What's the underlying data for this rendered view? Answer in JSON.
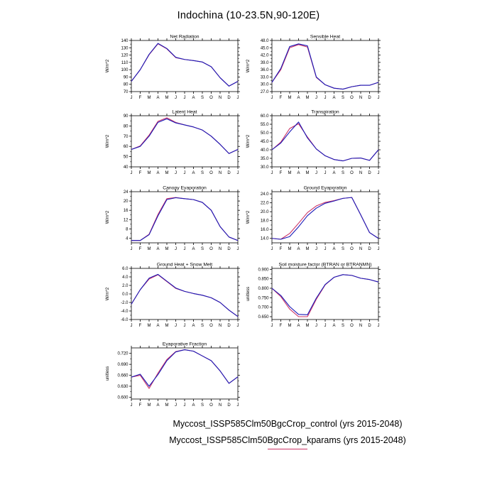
{
  "page": {
    "title": "Indochina (10-23.5N,90-120E)"
  },
  "legend": {
    "entries": [
      {
        "label": "Myccost_ISSP585Clm50BgcCrop_control (yrs 2015-2048)",
        "color": "#1a1ab8"
      },
      {
        "label": "Myccost_ISSP585Clm50BgcCrop_kparams (yrs 2015-2048)",
        "color": "#cc3366"
      }
    ]
  },
  "chart_data": [
    {
      "type": "line",
      "title": "Net Radiation",
      "ylabel": "W/m^2",
      "x": [
        "J",
        "F",
        "M",
        "A",
        "M",
        "J",
        "J",
        "A",
        "S",
        "O",
        "N",
        "D",
        "J"
      ],
      "ymin": 70,
      "ymax": 140,
      "yticks": [
        "140",
        "130",
        "120",
        "110",
        "100",
        "90",
        "80",
        "70"
      ],
      "series": [
        {
          "name": "control",
          "color": "#1a1ab8",
          "values": [
            84,
            100,
            121,
            136,
            129,
            117,
            114,
            112.5,
            110.5,
            104,
            89,
            77.5,
            84
          ]
        },
        {
          "name": "kparams",
          "color": "#cc3366",
          "values": [
            84,
            100,
            120.5,
            135.5,
            128.5,
            116.5,
            114,
            112.5,
            110.5,
            104,
            89,
            77.5,
            84
          ]
        }
      ]
    },
    {
      "type": "line",
      "title": "Sensible Heat",
      "ylabel": "W/m^2",
      "x": [
        "J",
        "F",
        "M",
        "A",
        "M",
        "J",
        "J",
        "A",
        "S",
        "O",
        "N",
        "D",
        "J"
      ],
      "ymin": 27,
      "ymax": 48,
      "yticks": [
        "48.0",
        "45.0",
        "42.0",
        "39.0",
        "36.0",
        "33.0",
        "30.0",
        "27.0"
      ],
      "series": [
        {
          "name": "control",
          "color": "#1a1ab8",
          "values": [
            30.8,
            36.5,
            45.5,
            46.6,
            45.8,
            33.0,
            29.8,
            28.4,
            28.0,
            29.0,
            29.6,
            29.6,
            30.8
          ]
        },
        {
          "name": "kparams",
          "color": "#cc3366",
          "values": [
            30.8,
            36.0,
            45.0,
            46.3,
            45.3,
            32.8,
            29.8,
            28.4,
            28.0,
            29.0,
            29.6,
            29.6,
            30.8
          ]
        }
      ]
    },
    {
      "type": "line",
      "title": "Latent Heat",
      "ylabel": "W/m^2",
      "x": [
        "J",
        "F",
        "M",
        "A",
        "M",
        "J",
        "J",
        "A",
        "S",
        "O",
        "N",
        "D",
        "J"
      ],
      "ymin": 40,
      "ymax": 90,
      "yticks": [
        "90",
        "80",
        "70",
        "60",
        "50",
        "40"
      ],
      "series": [
        {
          "name": "control",
          "color": "#1a1ab8",
          "values": [
            57,
            60,
            70,
            83.5,
            87,
            83,
            81,
            79,
            76,
            70,
            62,
            53,
            57
          ]
        },
        {
          "name": "kparams",
          "color": "#cc3366",
          "values": [
            57,
            60.5,
            71,
            84.5,
            88,
            83.5,
            81,
            79,
            76,
            70,
            62,
            53,
            57
          ]
        }
      ]
    },
    {
      "type": "line",
      "title": "Transpiration",
      "ylabel": "W/m^2",
      "x": [
        "J",
        "F",
        "M",
        "A",
        "M",
        "J",
        "J",
        "A",
        "S",
        "O",
        "N",
        "D",
        "J"
      ],
      "ymin": 30,
      "ymax": 60,
      "yticks": [
        "60.0",
        "55.0",
        "50.0",
        "45.0",
        "40.0",
        "35.0",
        "30.0"
      ],
      "series": [
        {
          "name": "control",
          "color": "#1a1ab8",
          "values": [
            40,
            44,
            50.5,
            56.3,
            47,
            40.5,
            36.5,
            34.3,
            33.5,
            35,
            35.2,
            33.8,
            40
          ]
        },
        {
          "name": "kparams",
          "color": "#cc3366",
          "values": [
            40,
            44.5,
            52.5,
            55.3,
            47.5,
            40.5,
            36.5,
            34.3,
            33.5,
            35,
            35.2,
            33.8,
            40
          ]
        }
      ]
    },
    {
      "type": "line",
      "title": "Canopy Evaporation",
      "ylabel": "W/m^2",
      "x": [
        "J",
        "F",
        "M",
        "A",
        "M",
        "J",
        "J",
        "A",
        "S",
        "O",
        "N",
        "D",
        "J"
      ],
      "ymin": 2,
      "ymax": 24,
      "yticks": [
        "24",
        "20",
        "16",
        "12",
        "8",
        "4"
      ],
      "series": [
        {
          "name": "control",
          "color": "#1a1ab8",
          "values": [
            3,
            3,
            5.5,
            13.6,
            20.6,
            21.4,
            21.0,
            20.6,
            19.4,
            16,
            9,
            4.5,
            3
          ]
        },
        {
          "name": "kparams",
          "color": "#cc3366",
          "values": [
            3,
            3,
            5.7,
            14.2,
            21.0,
            21.5,
            21.0,
            20.6,
            19.4,
            16,
            9,
            4.5,
            3
          ]
        }
      ]
    },
    {
      "type": "line",
      "title": "Ground Evaporation",
      "ylabel": "W/m^2",
      "x": [
        "J",
        "F",
        "M",
        "A",
        "M",
        "J",
        "J",
        "A",
        "S",
        "O",
        "N",
        "D",
        "J"
      ],
      "ymin": 13,
      "ymax": 24.5,
      "yticks": [
        "24.0",
        "22.0",
        "20.0",
        "18.0",
        "16.0",
        "14.0"
      ],
      "series": [
        {
          "name": "control",
          "color": "#1a1ab8",
          "values": [
            14,
            13.8,
            14.4,
            16.6,
            19.1,
            20.8,
            21.9,
            22.4,
            23.0,
            23.2,
            19.3,
            15.3,
            14
          ]
        },
        {
          "name": "kparams",
          "color": "#cc3366",
          "values": [
            14,
            13.8,
            15.1,
            17.4,
            19.8,
            21.3,
            22.1,
            22.5,
            23.0,
            23.2,
            19.3,
            15.3,
            14
          ]
        }
      ]
    },
    {
      "type": "line",
      "title": "Ground Heat + Snow Melt",
      "ylabel": "W/m^2",
      "x": [
        "J",
        "F",
        "M",
        "A",
        "M",
        "J",
        "J",
        "A",
        "S",
        "O",
        "N",
        "D",
        "J"
      ],
      "ymin": -6,
      "ymax": 6,
      "yticks": [
        "6.0",
        "4.0",
        "2.0",
        "0.0",
        "-2.0",
        "-4.0",
        "-6.0"
      ],
      "series": [
        {
          "name": "control",
          "color": "#1a1ab8",
          "values": [
            -2.4,
            1.0,
            3.7,
            4.6,
            3.0,
            1.4,
            0.6,
            0.1,
            -0.3,
            -0.9,
            -2.0,
            -3.8,
            -5.3
          ]
        },
        {
          "name": "kparams",
          "color": "#cc3366",
          "values": [
            -2.4,
            1.0,
            3.5,
            4.5,
            2.9,
            1.3,
            0.6,
            0.1,
            -0.3,
            -0.9,
            -2.0,
            -3.8,
            -5.3
          ]
        }
      ]
    },
    {
      "type": "line",
      "title": "Soil moisture factor (BTRAN or BTRANMN)",
      "ylabel": "unitless",
      "x": [
        "J",
        "F",
        "M",
        "A",
        "M",
        "J",
        "J",
        "A",
        "S",
        "O",
        "N",
        "D",
        "J"
      ],
      "ymin": 0.635,
      "ymax": 0.905,
      "yticks": [
        "0.900",
        "0.850",
        "0.800",
        "0.750",
        "0.700",
        "0.650"
      ],
      "series": [
        {
          "name": "control",
          "color": "#1a1ab8",
          "values": [
            0.8,
            0.762,
            0.703,
            0.662,
            0.66,
            0.748,
            0.82,
            0.858,
            0.872,
            0.868,
            0.853,
            0.846,
            0.833
          ]
        },
        {
          "name": "kparams",
          "color": "#cc3366",
          "values": [
            0.8,
            0.756,
            0.69,
            0.65,
            0.65,
            0.742,
            0.818,
            0.858,
            0.872,
            0.868,
            0.853,
            0.846,
            0.833
          ]
        }
      ]
    },
    {
      "type": "line",
      "title": "Evaporative Fraction",
      "ylabel": "unitless",
      "x": [
        "J",
        "F",
        "M",
        "A",
        "M",
        "J",
        "J",
        "A",
        "S",
        "O",
        "N",
        "D",
        "J"
      ],
      "ymin": 0.595,
      "ymax": 0.735,
      "yticks": [
        "0.720",
        "0.690",
        "0.660",
        "0.630",
        "0.600"
      ],
      "series": [
        {
          "name": "control",
          "color": "#1a1ab8",
          "values": [
            0.655,
            0.663,
            0.63,
            0.662,
            0.7,
            0.724,
            0.73,
            0.726,
            0.713,
            0.7,
            0.672,
            0.638,
            0.656
          ]
        },
        {
          "name": "kparams",
          "color": "#cc3366",
          "values": [
            0.655,
            0.66,
            0.624,
            0.666,
            0.703,
            0.725,
            0.73,
            0.726,
            0.713,
            0.7,
            0.672,
            0.638,
            0.656
          ]
        }
      ]
    }
  ]
}
